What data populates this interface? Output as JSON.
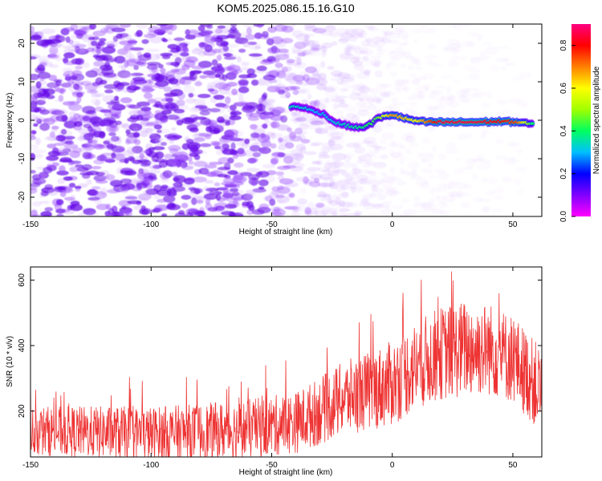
{
  "chart_data": [
    {
      "type": "heatmap",
      "title": "KOM5.2025.086.15.16.G10",
      "xlabel": "Height of straight line (km)",
      "ylabel": "Frequency (Hz)",
      "xlim": [
        -150,
        62
      ],
      "ylim": [
        -25,
        25
      ],
      "xticks": [
        -150,
        -100,
        -50,
        0,
        50
      ],
      "yticks": [
        -20,
        -10,
        0,
        10,
        20
      ],
      "grid": false,
      "colorbar": {
        "label": "Normalized spectral amplitude",
        "range": [
          0,
          0.9
        ],
        "ticks": [
          "0.0",
          "0.2",
          "0.4",
          "0.6",
          "0.8"
        ],
        "colors": [
          "#ff00ff",
          "#8000ff",
          "#0000ff",
          "#00c0ff",
          "#00ff60",
          "#a0ff00",
          "#ffff00",
          "#ff8000",
          "#ff0000",
          "#ff0080"
        ]
      },
      "ridge": {
        "points": [
          {
            "x": -42,
            "f": 3.5
          },
          {
            "x": -38,
            "f": 3.5
          },
          {
            "x": -33,
            "f": 2.5
          },
          {
            "x": -28,
            "f": 1.5
          },
          {
            "x": -24,
            "f": -0.5
          },
          {
            "x": -18,
            "f": -1.5
          },
          {
            "x": -13,
            "f": -2.0
          },
          {
            "x": -9,
            "f": -1.0
          },
          {
            "x": -6,
            "f": 0.5
          },
          {
            "x": 0,
            "f": 1.5
          },
          {
            "x": 5,
            "f": 0.5
          },
          {
            "x": 10,
            "f": -0.2
          },
          {
            "x": 15,
            "f": -0.5
          },
          {
            "x": 25,
            "f": -0.5
          },
          {
            "x": 35,
            "f": -0.5
          },
          {
            "x": 45,
            "f": -0.3
          },
          {
            "x": 52,
            "f": -0.5
          },
          {
            "x": 58,
            "f": -1.0
          }
        ],
        "peak_amplitude": [
          {
            "x": -42,
            "a": 0.35
          },
          {
            "x": -30,
            "a": 0.3
          },
          {
            "x": -18,
            "a": 0.35
          },
          {
            "x": -6,
            "a": 0.45
          },
          {
            "x": 0,
            "a": 0.7
          },
          {
            "x": 10,
            "a": 0.6
          },
          {
            "x": 20,
            "a": 0.85
          },
          {
            "x": 35,
            "a": 0.85
          },
          {
            "x": 45,
            "a": 0.8
          },
          {
            "x": 52,
            "a": 0.75
          },
          {
            "x": 58,
            "a": 0.4
          }
        ]
      },
      "background_noise_amplitude": [
        {
          "x": -150,
          "a": 0.2
        },
        {
          "x": -60,
          "a": 0.2
        },
        {
          "x": -40,
          "a": 0.12
        },
        {
          "x": -20,
          "a": 0.06
        },
        {
          "x": 0,
          "a": 0.02
        },
        {
          "x": 62,
          "a": 0.01
        }
      ]
    },
    {
      "type": "line",
      "xlabel": "Height of straight line (km)",
      "ylabel": "SNR (10 * v/v)",
      "xlim": [
        -150,
        62
      ],
      "ylim": [
        60,
        640
      ],
      "xticks": [
        -150,
        -100,
        -50,
        0,
        50
      ],
      "yticks": [
        200,
        400,
        600
      ],
      "grid": false,
      "series": [
        {
          "color": "#ee3333",
          "mean_profile": [
            {
              "x": -150,
              "y": 140
            },
            {
              "x": -120,
              "y": 135
            },
            {
              "x": -100,
              "y": 130
            },
            {
              "x": -80,
              "y": 135
            },
            {
              "x": -60,
              "y": 145
            },
            {
              "x": -40,
              "y": 165
            },
            {
              "x": -30,
              "y": 200
            },
            {
              "x": -20,
              "y": 240
            },
            {
              "x": -10,
              "y": 260
            },
            {
              "x": 0,
              "y": 285
            },
            {
              "x": 10,
              "y": 340
            },
            {
              "x": 20,
              "y": 375
            },
            {
              "x": 30,
              "y": 390
            },
            {
              "x": 40,
              "y": 390
            },
            {
              "x": 50,
              "y": 360
            },
            {
              "x": 55,
              "y": 320
            },
            {
              "x": 62,
              "y": 260
            }
          ],
          "fluctuation_range": [
            {
              "x": -150,
              "y": 75
            },
            {
              "x": -40,
              "y": 95
            },
            {
              "x": 0,
              "y": 130
            },
            {
              "x": 30,
              "y": 150
            },
            {
              "x": 62,
              "y": 130
            }
          ],
          "max": 640,
          "min": 60
        }
      ]
    }
  ]
}
